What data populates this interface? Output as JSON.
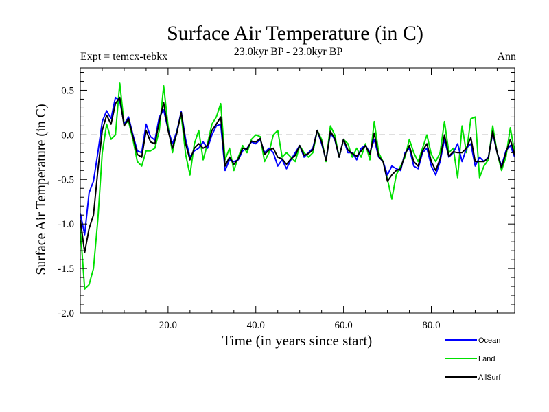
{
  "chart_data": {
    "type": "line",
    "title": "Surface Air Temperature (in C)",
    "subtitle_left": "Expt = temcx-tebkx",
    "subtitle_center": "23.0kyr BP - 23.0kyr BP",
    "subtitle_right": "Ann",
    "xlabel": "Time (in years since start)",
    "ylabel": "Surface Air Temperature (in C)",
    "xlim": [
      0,
      99
    ],
    "ylim": [
      -2.0,
      0.75
    ],
    "x_ticks": [
      20,
      40,
      60,
      80
    ],
    "x_tick_labels": [
      "20.0",
      "40.0",
      "60.0",
      "80.0"
    ],
    "y_ticks": [
      0.5,
      0.0,
      -0.5,
      -1.0,
      -1.5,
      -2.0
    ],
    "y_tick_labels": [
      "0.5",
      "0.0",
      "-0.5",
      "-1.0",
      "-1.5",
      "-2.0"
    ],
    "reference_line": 0.0,
    "x": [
      0,
      1,
      2,
      3,
      4,
      5,
      6,
      7,
      8,
      9,
      10,
      11,
      12,
      13,
      14,
      15,
      16,
      17,
      18,
      19,
      20,
      21,
      22,
      23,
      24,
      25,
      26,
      27,
      28,
      29,
      30,
      31,
      32,
      33,
      34,
      35,
      36,
      37,
      38,
      39,
      40,
      41,
      42,
      43,
      44,
      45,
      46,
      47,
      48,
      49,
      50,
      51,
      52,
      53,
      54,
      55,
      56,
      57,
      58,
      59,
      60,
      61,
      62,
      63,
      64,
      65,
      66,
      67,
      68,
      69,
      70,
      71,
      72,
      73,
      74,
      75,
      76,
      77,
      78,
      79,
      80,
      81,
      82,
      83,
      84,
      85,
      86,
      87,
      88,
      89,
      90,
      91,
      92,
      93,
      94,
      95,
      96,
      97,
      98,
      99
    ],
    "series": [
      {
        "name": "Ocean",
        "color": "#0000ff",
        "values": [
          -0.88,
          -1.12,
          -0.65,
          -0.52,
          -0.2,
          0.15,
          0.27,
          0.18,
          0.42,
          0.38,
          0.12,
          0.2,
          0.0,
          -0.18,
          -0.2,
          0.12,
          -0.02,
          -0.06,
          0.2,
          0.28,
          0.06,
          -0.1,
          0.04,
          0.26,
          -0.05,
          -0.25,
          -0.18,
          -0.15,
          -0.08,
          -0.15,
          0.0,
          0.1,
          0.12,
          -0.4,
          -0.28,
          -0.3,
          -0.28,
          -0.18,
          -0.15,
          -0.08,
          -0.1,
          -0.05,
          -0.2,
          -0.15,
          -0.2,
          -0.35,
          -0.28,
          -0.38,
          -0.28,
          -0.2,
          -0.12,
          -0.25,
          -0.2,
          -0.15,
          0.05,
          -0.1,
          -0.28,
          0.02,
          -0.05,
          -0.25,
          -0.05,
          -0.2,
          -0.2,
          -0.28,
          -0.15,
          -0.12,
          -0.2,
          -0.05,
          -0.25,
          -0.3,
          -0.45,
          -0.35,
          -0.38,
          -0.4,
          -0.2,
          -0.15,
          -0.35,
          -0.38,
          -0.2,
          -0.15,
          -0.35,
          -0.45,
          -0.3,
          -0.05,
          -0.25,
          -0.2,
          -0.1,
          -0.3,
          -0.15,
          -0.1,
          -0.35,
          -0.25,
          -0.3,
          -0.25,
          0.02,
          -0.2,
          -0.35,
          -0.18,
          -0.12,
          -0.25
        ]
      },
      {
        "name": "Land",
        "color": "#00e000",
        "values": [
          -1.05,
          -1.73,
          -1.68,
          -1.5,
          -0.95,
          -0.2,
          0.12,
          -0.05,
          0.0,
          0.58,
          0.12,
          0.15,
          -0.05,
          -0.3,
          -0.35,
          -0.18,
          -0.18,
          -0.15,
          0.05,
          0.55,
          0.1,
          -0.2,
          0.05,
          0.22,
          -0.22,
          -0.45,
          -0.1,
          0.05,
          -0.28,
          -0.1,
          0.12,
          0.2,
          0.35,
          -0.28,
          -0.15,
          -0.4,
          -0.25,
          -0.12,
          -0.2,
          -0.05,
          0.0,
          -0.02,
          -0.3,
          -0.2,
          0.0,
          0.05,
          -0.25,
          -0.2,
          -0.25,
          -0.3,
          -0.12,
          -0.2,
          -0.25,
          -0.2,
          0.05,
          -0.05,
          -0.3,
          0.1,
          0.0,
          -0.25,
          -0.05,
          -0.1,
          -0.25,
          -0.15,
          -0.25,
          -0.1,
          -0.28,
          0.15,
          -0.2,
          -0.3,
          -0.5,
          -0.72,
          -0.45,
          -0.35,
          -0.25,
          -0.05,
          -0.2,
          -0.3,
          -0.15,
          0.0,
          -0.22,
          -0.3,
          -0.2,
          0.15,
          -0.2,
          -0.15,
          -0.48,
          0.1,
          -0.2,
          0.18,
          0.2,
          -0.48,
          -0.35,
          -0.28,
          0.1,
          -0.2,
          -0.4,
          -0.25,
          0.08,
          -0.2
        ]
      },
      {
        "name": "AllSurf",
        "color": "#000000",
        "values": [
          -0.95,
          -1.32,
          -1.05,
          -0.9,
          -0.4,
          0.05,
          0.22,
          0.12,
          0.35,
          0.42,
          0.1,
          0.18,
          -0.02,
          -0.22,
          -0.25,
          0.05,
          -0.08,
          -0.1,
          0.15,
          0.36,
          0.05,
          -0.15,
          0.02,
          0.25,
          -0.1,
          -0.28,
          -0.15,
          -0.1,
          -0.15,
          -0.12,
          0.05,
          0.12,
          0.2,
          -0.35,
          -0.25,
          -0.33,
          -0.27,
          -0.15,
          -0.16,
          -0.07,
          -0.08,
          -0.04,
          -0.22,
          -0.17,
          -0.15,
          -0.25,
          -0.27,
          -0.33,
          -0.27,
          -0.23,
          -0.12,
          -0.23,
          -0.21,
          -0.17,
          0.05,
          -0.08,
          -0.29,
          0.04,
          -0.04,
          -0.25,
          -0.05,
          -0.17,
          -0.21,
          -0.24,
          -0.18,
          -0.12,
          -0.22,
          0.02,
          -0.24,
          -0.3,
          -0.52,
          -0.45,
          -0.4,
          -0.38,
          -0.22,
          -0.12,
          -0.3,
          -0.35,
          -0.18,
          -0.1,
          -0.3,
          -0.4,
          -0.27,
          0.0,
          -0.24,
          -0.19,
          -0.2,
          -0.2,
          -0.15,
          -0.03,
          -0.3,
          -0.3,
          -0.3,
          -0.26,
          0.04,
          -0.2,
          -0.37,
          -0.2,
          -0.05,
          -0.23
        ]
      }
    ]
  }
}
